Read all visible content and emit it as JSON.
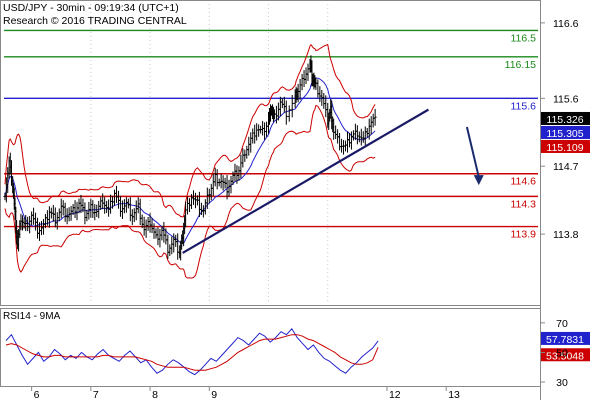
{
  "header": {
    "line1": "USD/JPY - 30min - 09:19:34 (UTC+1)",
    "line2": "Research © 2016 TRADING CENTRAL"
  },
  "chart_data": [
    {
      "type": "candlestick",
      "ylim": [
        112.9,
        116.85
      ],
      "y_ticks": [
        "116.6",
        "115.6",
        "114.7",
        "113.8"
      ],
      "x_ticks": [
        "6",
        "7",
        "8",
        "9",
        "12",
        "13"
      ],
      "x_tick_positions": [
        6,
        7,
        8,
        9,
        12,
        13
      ],
      "x_range": [
        5.5,
        14.55
      ],
      "levels": [
        {
          "label": "116.5",
          "value": 116.5,
          "color": "#1a8a1a"
        },
        {
          "label": "116.15",
          "value": 116.15,
          "color": "#1a8a1a"
        },
        {
          "label": "115.6",
          "value": 115.6,
          "color": "#2222cc"
        },
        {
          "label": "114.6",
          "value": 114.6,
          "color": "#cc0000"
        },
        {
          "label": "114.3",
          "value": 114.3,
          "color": "#cc0000"
        },
        {
          "label": "113.9",
          "value": 113.9,
          "color": "#cc0000"
        }
      ],
      "price_tags": [
        {
          "label": "115.326",
          "value": 115.326,
          "bg": "#000000",
          "fg": "#ffffff"
        },
        {
          "label": "115.305",
          "value": 115.305,
          "bg": "#2222cc",
          "fg": "#ffffff"
        },
        {
          "label": "115.109",
          "value": 115.109,
          "bg": "#cc0000",
          "fg": "#ffffff"
        }
      ],
      "trendline": {
        "from": [
          8.55,
          113.55
        ],
        "to": [
          12.7,
          115.45
        ]
      },
      "forecast_arrow": {
        "from": [
          13.35,
          115.22
        ],
        "to": [
          13.55,
          114.45
        ]
      },
      "close_path": [
        [
          5.55,
          114.35
        ],
        [
          5.62,
          114.75
        ],
        [
          5.68,
          114.45
        ],
        [
          5.72,
          114.05
        ],
        [
          5.76,
          113.65
        ],
        [
          5.82,
          114.0
        ],
        [
          5.9,
          113.9
        ],
        [
          6.0,
          114.05
        ],
        [
          6.1,
          113.85
        ],
        [
          6.2,
          113.9
        ],
        [
          6.3,
          114.1
        ],
        [
          6.4,
          114.0
        ],
        [
          6.5,
          114.15
        ],
        [
          6.6,
          114.05
        ],
        [
          6.7,
          114.1
        ],
        [
          6.8,
          114.2
        ],
        [
          6.9,
          114.05
        ],
        [
          7.0,
          114.15
        ],
        [
          7.1,
          114.1
        ],
        [
          7.2,
          114.25
        ],
        [
          7.3,
          114.1
        ],
        [
          7.4,
          114.35
        ],
        [
          7.5,
          114.15
        ],
        [
          7.6,
          114.2
        ],
        [
          7.7,
          114.05
        ],
        [
          7.8,
          114.15
        ],
        [
          7.9,
          113.85
        ],
        [
          8.0,
          113.95
        ],
        [
          8.1,
          113.75
        ],
        [
          8.2,
          113.85
        ],
        [
          8.3,
          113.6
        ],
        [
          8.4,
          113.7
        ],
        [
          8.5,
          113.55
        ],
        [
          8.55,
          113.8
        ],
        [
          8.6,
          114.1
        ],
        [
          8.7,
          114.3
        ],
        [
          8.8,
          114.2
        ],
        [
          8.9,
          114.1
        ],
        [
          9.0,
          114.35
        ],
        [
          9.1,
          114.55
        ],
        [
          9.2,
          114.5
        ],
        [
          9.3,
          114.4
        ],
        [
          9.4,
          114.55
        ],
        [
          9.5,
          114.65
        ],
        [
          9.6,
          114.9
        ],
        [
          9.7,
          115.05
        ],
        [
          9.8,
          115.2
        ],
        [
          9.9,
          115.15
        ],
        [
          10.0,
          115.3
        ],
        [
          10.05,
          115.45
        ],
        [
          10.1,
          115.35
        ],
        [
          10.2,
          115.55
        ],
        [
          10.3,
          115.4
        ],
        [
          10.45,
          115.6
        ],
        [
          10.5,
          115.7
        ],
        [
          10.6,
          115.9
        ],
        [
          10.7,
          116.05
        ],
        [
          10.75,
          115.85
        ],
        [
          10.8,
          115.75
        ],
        [
          10.9,
          115.6
        ],
        [
          11.0,
          115.3
        ],
        [
          11.05,
          115.45
        ],
        [
          11.1,
          115.15
        ],
        [
          11.2,
          115.0
        ],
        [
          11.3,
          114.95
        ],
        [
          11.4,
          115.1
        ],
        [
          11.5,
          115.15
        ],
        [
          11.6,
          115.05
        ],
        [
          11.7,
          115.25
        ],
        [
          11.8,
          115.35
        ]
      ],
      "date_break_positions": [
        7.0,
        8.0,
        9.0,
        10.0,
        11.0
      ]
    },
    {
      "type": "line",
      "title": "RSI14 - 9MA",
      "ylim": [
        28,
        78
      ],
      "y_ticks": [
        "70",
        "50",
        "30"
      ],
      "series": [
        {
          "color": "#2222cc",
          "values": [
            58,
            62,
            55,
            48,
            42,
            46,
            50,
            44,
            47,
            52,
            49,
            45,
            48,
            46,
            50,
            47,
            45,
            49,
            52,
            48,
            46,
            44,
            48,
            51,
            47,
            43,
            45,
            40,
            36,
            38,
            42,
            45,
            43,
            40,
            37,
            35,
            38,
            42,
            46,
            44,
            48,
            52,
            56,
            60,
            58,
            55,
            59,
            63,
            61,
            57,
            60,
            64,
            62,
            66,
            60,
            56,
            52,
            55,
            50,
            46,
            44,
            41,
            38,
            36,
            40,
            43,
            47,
            50,
            53,
            57.78
          ]
        },
        {
          "color": "#cc0000",
          "values": [
            55,
            56,
            55,
            53,
            51,
            49,
            48,
            47,
            47,
            48,
            48,
            47,
            47,
            47,
            47,
            47,
            47,
            47,
            48,
            48,
            47,
            47,
            47,
            47,
            47,
            46,
            45,
            44,
            42,
            41,
            40,
            40,
            40,
            40,
            39,
            38,
            38,
            38,
            39,
            40,
            42,
            44,
            47,
            50,
            52,
            54,
            56,
            58,
            59,
            59,
            59,
            60,
            61,
            62,
            62,
            61,
            59,
            58,
            56,
            54,
            52,
            50,
            47,
            45,
            43,
            42,
            42,
            43,
            45,
            53.5
          ]
        }
      ],
      "tags": [
        {
          "label": "57.7831",
          "bg": "#2222cc",
          "fg": "#ffffff",
          "value": 57.78
        },
        {
          "label": "53.5048",
          "bg": "#cc0000",
          "fg": "#ffffff",
          "value": 53.5
        }
      ]
    }
  ]
}
